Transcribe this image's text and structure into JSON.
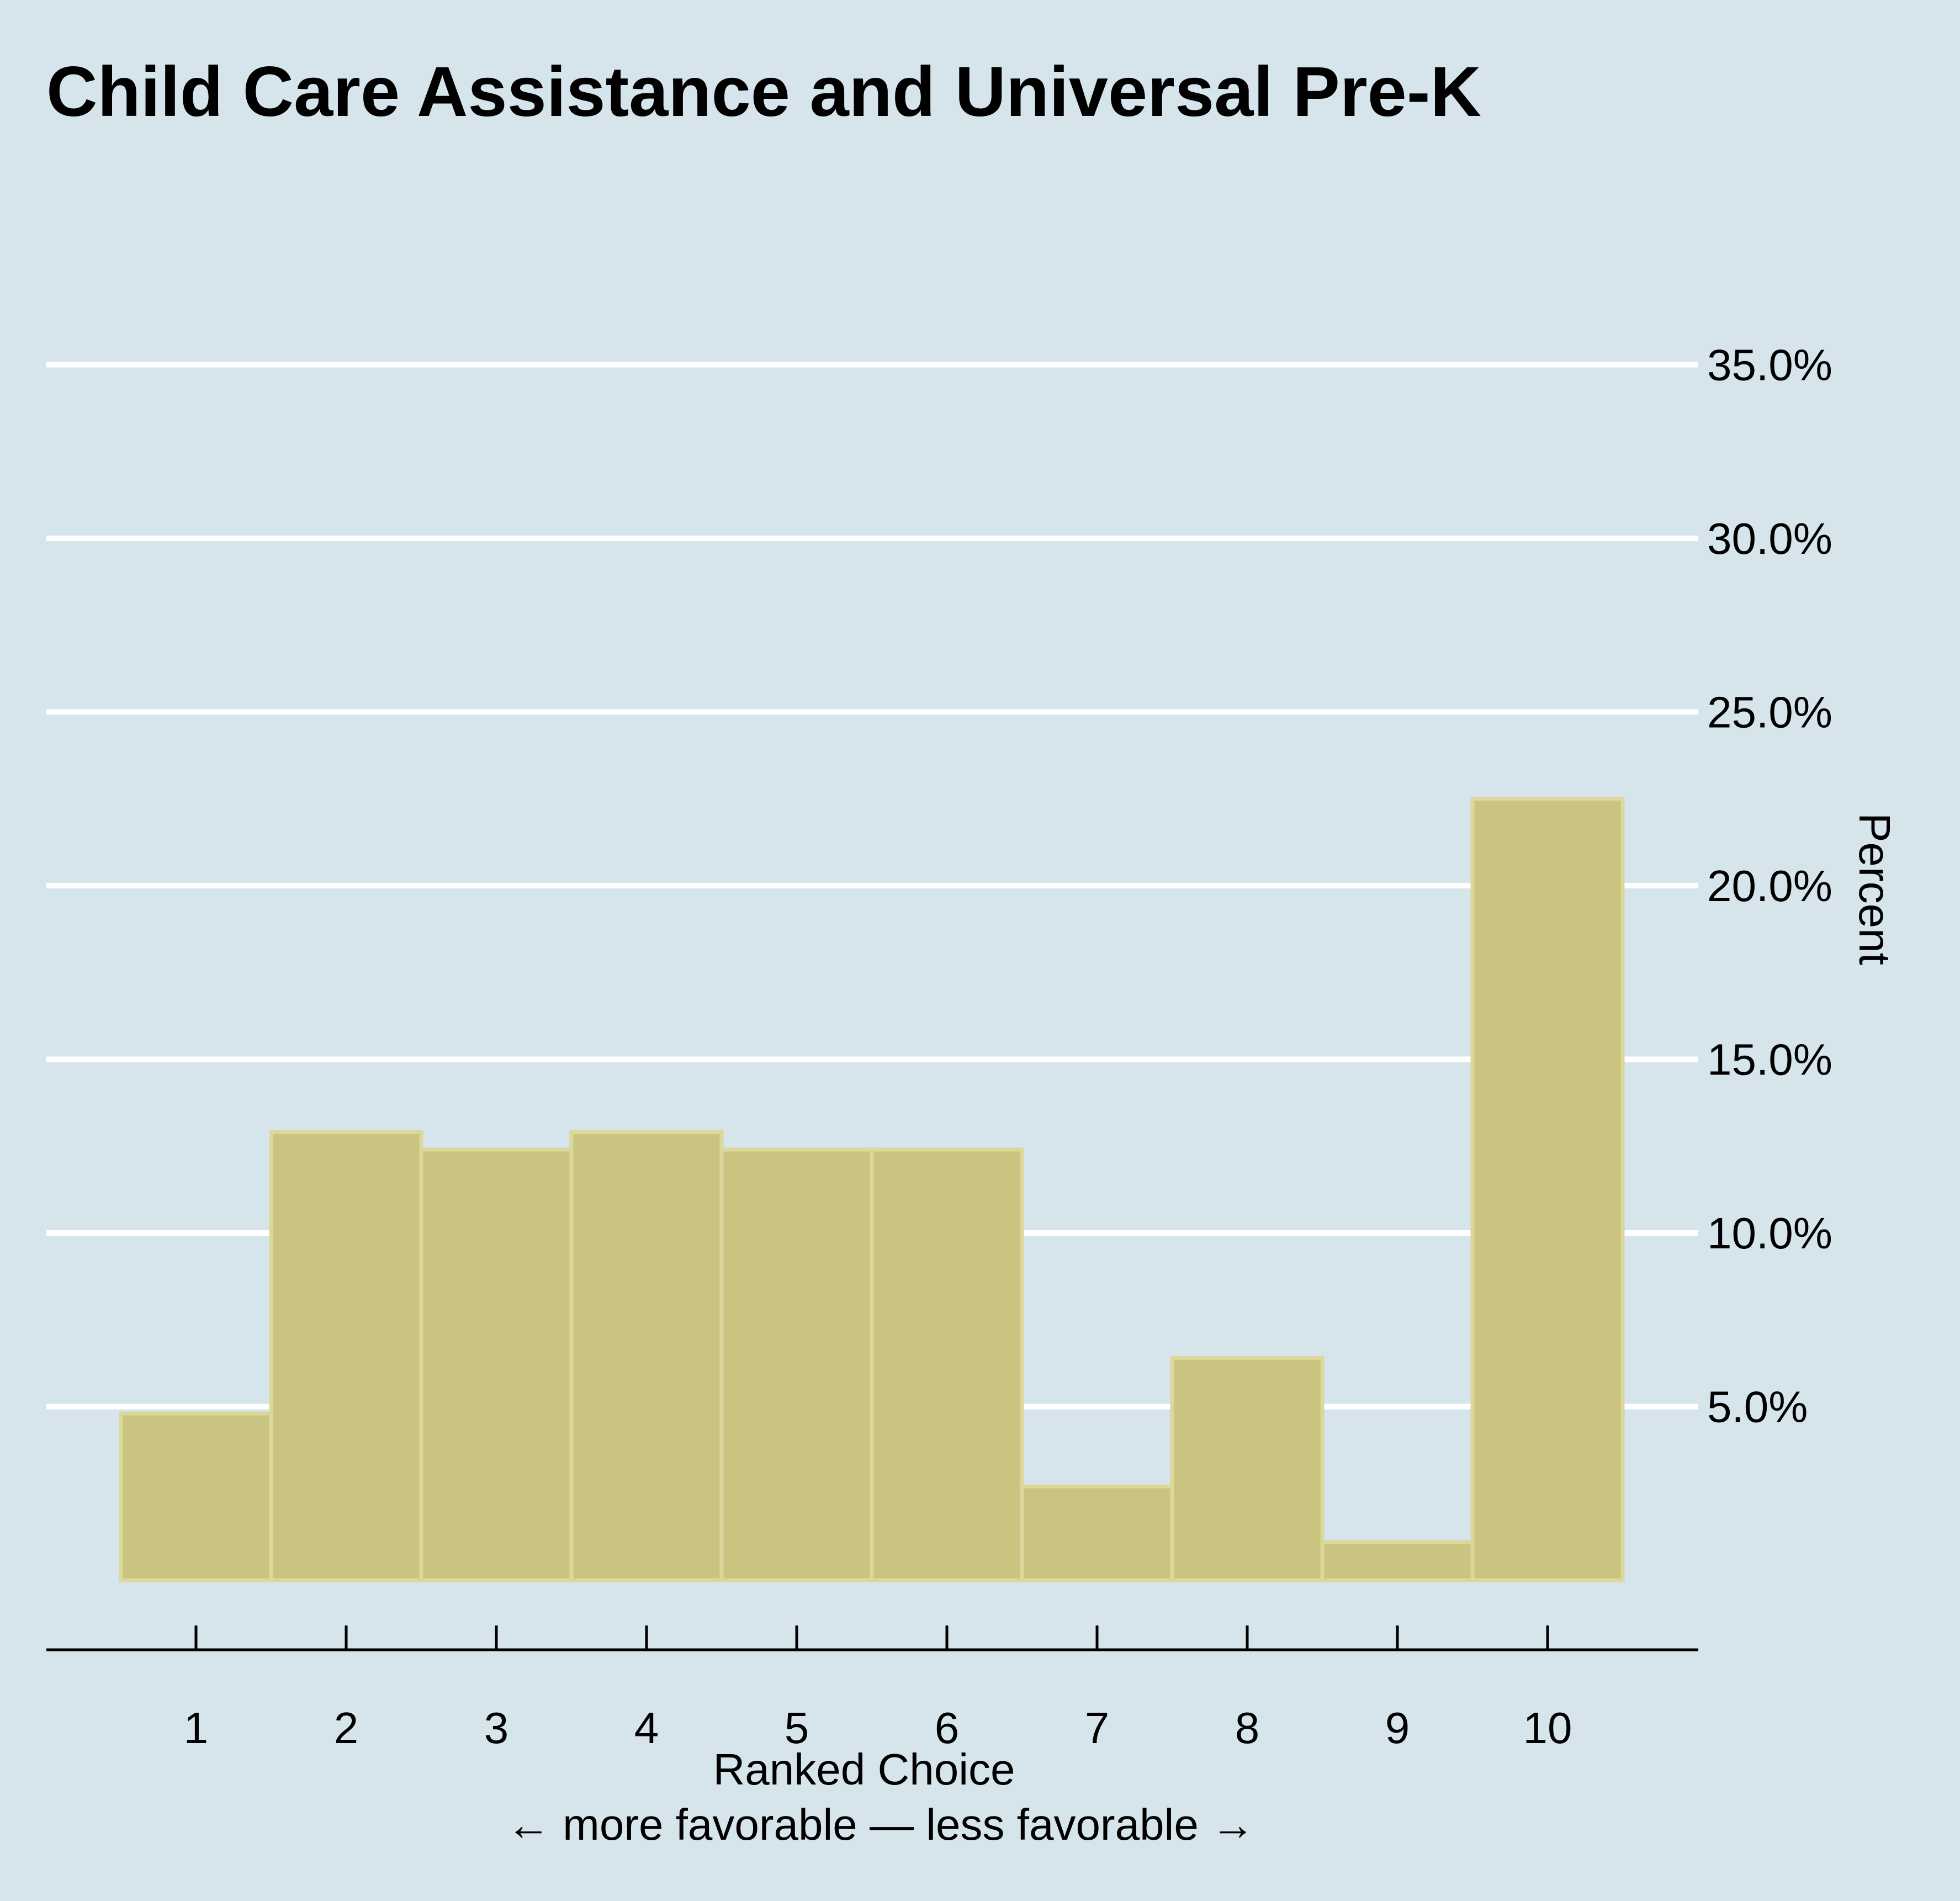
{
  "chart_data": {
    "type": "bar",
    "title": "Child Care Assistance and Universal Pre-K",
    "xlabel": "Ranked Choice",
    "xlabel_sub": "← more favorable — less favorable →",
    "ylabel": "Percent",
    "categories": [
      "1",
      "2",
      "3",
      "4",
      "5",
      "6",
      "7",
      "8",
      "9",
      "10"
    ],
    "values": [
      4.8,
      12.9,
      12.4,
      12.9,
      12.4,
      12.4,
      2.7,
      6.4,
      1.1,
      22.5
    ],
    "ylim": [
      0,
      35
    ],
    "yticks": [
      5,
      10,
      15,
      20,
      25,
      30,
      35
    ],
    "ytick_labels": [
      "5.0%",
      "10.0%",
      "15.0%",
      "20.0%",
      "25.0%",
      "30.0%",
      "35.0%"
    ],
    "y_axis_side": "right",
    "grid": true,
    "legend": "none",
    "colors": {
      "background": "#d6e4ec",
      "bar_fill": "#c9c47f",
      "bar_edge": "#dcd79a",
      "grid": "#ffffff",
      "axis": "#000000",
      "text": "#000000"
    }
  }
}
